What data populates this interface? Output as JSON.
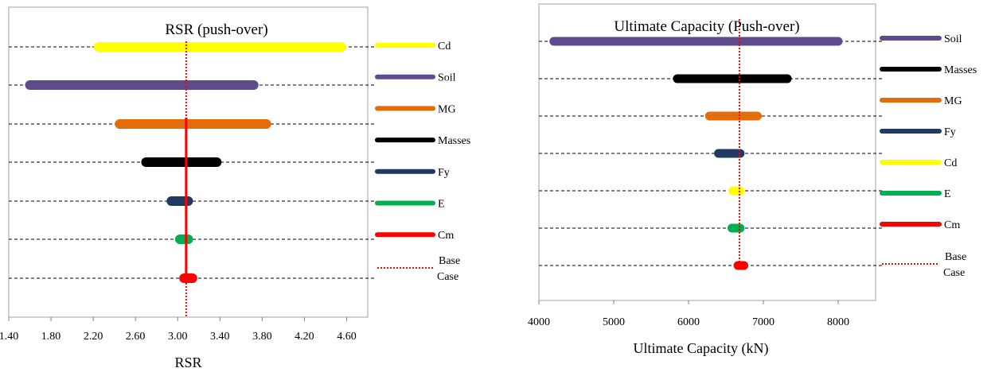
{
  "chart_data": [
    {
      "type": "range-bar",
      "title": "RSR (push-over)",
      "xlabel": "RSR",
      "xlim": [
        1.4,
        4.8
      ],
      "xticks": [
        "1.40",
        "1.80",
        "2.20",
        "2.60",
        "3.00",
        "3.40",
        "3.80",
        "4.20",
        "4.60"
      ],
      "base_case": 3.08,
      "grid": "horizontal dashed",
      "legend_position": "right",
      "series": [
        {
          "name": "Cd",
          "min": 2.25,
          "max": 4.55,
          "color": "#FFFF00"
        },
        {
          "name": "Soil",
          "min": 1.6,
          "max": 3.72,
          "color": "#5F4B8B"
        },
        {
          "name": "MG",
          "min": 2.45,
          "max": 3.84,
          "color": "#E46C0A"
        },
        {
          "name": "Masses",
          "min": 2.7,
          "max": 3.37,
          "color": "#000000"
        },
        {
          "name": "Fy",
          "min": 2.94,
          "max": 3.1,
          "color": "#1F3864"
        },
        {
          "name": "E",
          "min": 3.02,
          "max": 3.1,
          "color": "#00B050"
        },
        {
          "name": "Cm",
          "min": 3.06,
          "max": 3.14,
          "color": "#FF0000"
        }
      ],
      "base_case_label_1": "Base",
      "base_case_label_2": "Case",
      "base_case_color": "#FF0000"
    },
    {
      "type": "range-bar",
      "title": "Ultimate Capacity (Push-over)",
      "xlabel": "Ultimate Capacity  (kN)",
      "xlim": [
        4000,
        8500
      ],
      "xticks": [
        "4000",
        "5000",
        "6000",
        "7000",
        "8000"
      ],
      "base_case": 6680,
      "grid": "horizontal dashed",
      "legend_position": "right",
      "series": [
        {
          "name": "Soil",
          "min": 4200,
          "max": 8000,
          "color": "#5F4B8B"
        },
        {
          "name": "Masses",
          "min": 5850,
          "max": 7320,
          "color": "#000000"
        },
        {
          "name": "MG",
          "min": 6280,
          "max": 6920,
          "color": "#E46C0A"
        },
        {
          "name": "Fy",
          "min": 6400,
          "max": 6690,
          "color": "#1F3864"
        },
        {
          "name": "Cd",
          "min": 6590,
          "max": 6690,
          "color": "#FFFF00"
        },
        {
          "name": "E",
          "min": 6580,
          "max": 6690,
          "color": "#00B050"
        },
        {
          "name": "Cm",
          "min": 6660,
          "max": 6740,
          "color": "#FF0000"
        }
      ],
      "base_case_label_1": "Base",
      "base_case_label_2": "Case",
      "base_case_color": "#FF0000"
    }
  ]
}
